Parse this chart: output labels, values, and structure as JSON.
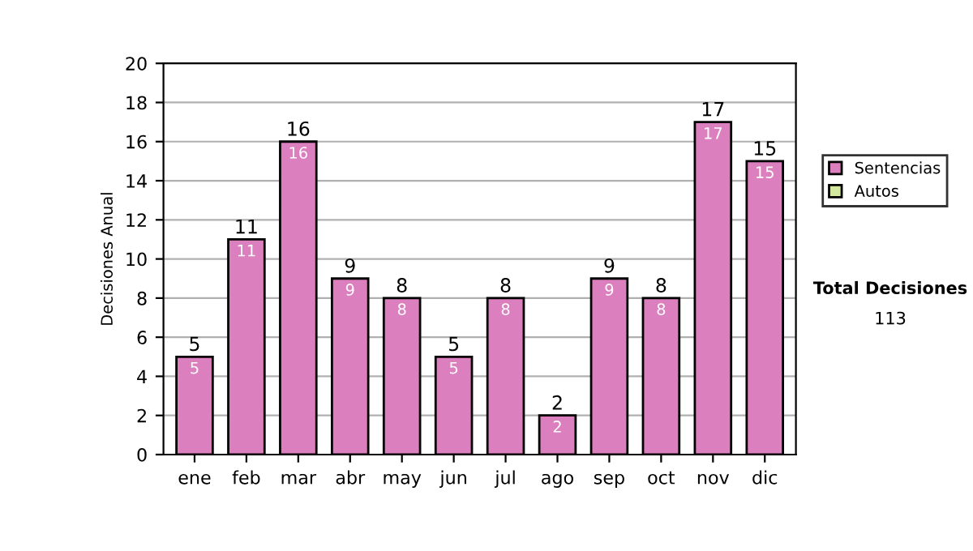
{
  "chart_data": {
    "type": "bar",
    "ylabel": "Decisiones Anual",
    "categories": [
      "ene",
      "feb",
      "mar",
      "abr",
      "may",
      "jun",
      "jul",
      "ago",
      "sep",
      "oct",
      "nov",
      "dic"
    ],
    "series": [
      {
        "name": "Sentencias",
        "color": "#dc7fbf",
        "values": [
          5,
          11,
          16,
          9,
          8,
          5,
          8,
          2,
          9,
          8,
          17,
          15
        ],
        "value_labels": [
          "5",
          "11",
          "16",
          "9",
          "8",
          "5",
          "8",
          "2",
          "9",
          "8",
          "17",
          "15"
        ]
      },
      {
        "name": "Autos",
        "color": "#d4e8a0",
        "values": [
          0,
          0,
          0,
          0,
          0,
          0,
          0,
          0,
          0,
          0,
          0,
          0
        ]
      }
    ],
    "stacked": true,
    "totals": [
      "5",
      "11",
      "16",
      "9",
      "8",
      "5",
      "8",
      "2",
      "9",
      "8",
      "17",
      "15"
    ],
    "ylim": [
      0,
      20
    ],
    "yticks": [
      0,
      2,
      4,
      6,
      8,
      10,
      12,
      14,
      16,
      18,
      20
    ],
    "grid": "y",
    "legend": "right",
    "annotations": [
      "Total Decisiones",
      "113"
    ]
  }
}
